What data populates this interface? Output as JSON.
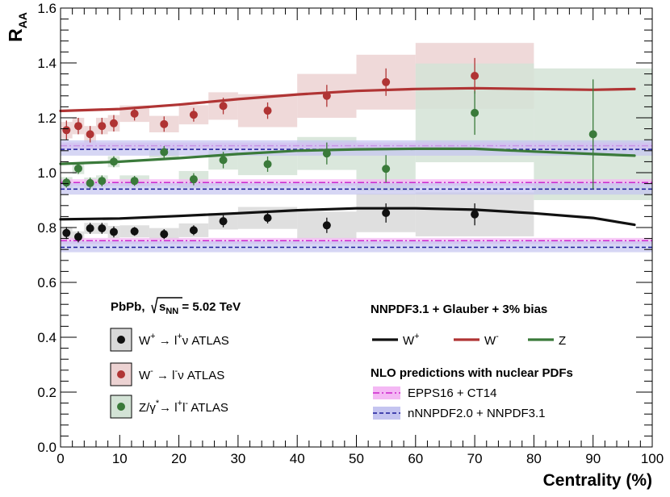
{
  "chart_data": {
    "type": "scatter",
    "title": "",
    "xlabel": "Centrality (%)",
    "ylabel": "R",
    "ylabel_sub": "AA",
    "xlim": [
      0,
      100
    ],
    "ylim": [
      0.0,
      1.6
    ],
    "x_ticks": [
      0,
      10,
      20,
      30,
      40,
      50,
      60,
      70,
      80,
      90,
      100
    ],
    "x_tick_labels": [
      "0",
      "10",
      "20",
      "30",
      "40",
      "50",
      "60",
      "70",
      "80",
      "90",
      "100"
    ],
    "y_ticks": [
      0.0,
      0.2,
      0.4,
      0.6,
      0.8,
      1.0,
      1.2,
      1.4,
      1.6
    ],
    "y_tick_labels": [
      "0.0",
      "0.2",
      "0.4",
      "0.6",
      "0.8",
      "1.0",
      "1.2",
      "1.4",
      "1.6"
    ],
    "grid": false,
    "colors": {
      "wplus": "#111111",
      "wminus": "#b03434",
      "z": "#3a7a3a",
      "epps_line": "#cc22cc",
      "epps_band": "#f4b8f4",
      "nnpdf_line": "#1a1a99",
      "nnpdf_band": "#c4c4f0",
      "wplus_box": "#d9d9d9",
      "wminus_box": "#ecd2d2",
      "z_box": "#d3e3d6"
    },
    "series": [
      {
        "name": "W+ ATLAS",
        "color_key": "wplus",
        "points": [
          {
            "x": 1,
            "y": 0.78,
            "err": 0.022,
            "xlo": 0,
            "xhi": 2,
            "syst": 0.02
          },
          {
            "x": 3,
            "y": 0.766,
            "err": 0.02,
            "xlo": 2,
            "xhi": 4,
            "syst": 0.02
          },
          {
            "x": 5,
            "y": 0.797,
            "err": 0.02,
            "xlo": 4,
            "xhi": 6,
            "syst": 0.02
          },
          {
            "x": 7,
            "y": 0.797,
            "err": 0.02,
            "xlo": 6,
            "xhi": 8,
            "syst": 0.02
          },
          {
            "x": 9,
            "y": 0.784,
            "err": 0.02,
            "xlo": 8,
            "xhi": 10,
            "syst": 0.022
          },
          {
            "x": 12.5,
            "y": 0.786,
            "err": 0.016,
            "xlo": 10,
            "xhi": 15,
            "syst": 0.022
          },
          {
            "x": 17.5,
            "y": 0.776,
            "err": 0.018,
            "xlo": 15,
            "xhi": 20,
            "syst": 0.022
          },
          {
            "x": 22.5,
            "y": 0.79,
            "err": 0.018,
            "xlo": 20,
            "xhi": 25,
            "syst": 0.025
          },
          {
            "x": 27.5,
            "y": 0.823,
            "err": 0.022,
            "xlo": 25,
            "xhi": 30,
            "syst": 0.03
          },
          {
            "x": 35,
            "y": 0.835,
            "err": 0.02,
            "xlo": 30,
            "xhi": 40,
            "syst": 0.04
          },
          {
            "x": 45,
            "y": 0.808,
            "err": 0.028,
            "xlo": 40,
            "xhi": 50,
            "syst": 0.05
          },
          {
            "x": 55,
            "y": 0.853,
            "err": 0.035,
            "xlo": 50,
            "xhi": 60,
            "syst": 0.07
          },
          {
            "x": 70,
            "y": 0.848,
            "err": 0.04,
            "xlo": 60,
            "xhi": 80,
            "syst": 0.08
          }
        ]
      },
      {
        "name": "W- ATLAS",
        "color_key": "wminus",
        "points": [
          {
            "x": 1,
            "y": 1.155,
            "err": 0.035,
            "xlo": 0,
            "xhi": 2,
            "syst": 0.03
          },
          {
            "x": 3,
            "y": 1.17,
            "err": 0.03,
            "xlo": 2,
            "xhi": 4,
            "syst": 0.03
          },
          {
            "x": 5,
            "y": 1.14,
            "err": 0.03,
            "xlo": 4,
            "xhi": 6,
            "syst": 0.03
          },
          {
            "x": 7,
            "y": 1.17,
            "err": 0.03,
            "xlo": 6,
            "xhi": 8,
            "syst": 0.03
          },
          {
            "x": 9,
            "y": 1.18,
            "err": 0.03,
            "xlo": 8,
            "xhi": 10,
            "syst": 0.03
          },
          {
            "x": 12.5,
            "y": 1.215,
            "err": 0.025,
            "xlo": 10,
            "xhi": 15,
            "syst": 0.03
          },
          {
            "x": 17.5,
            "y": 1.177,
            "err": 0.028,
            "xlo": 15,
            "xhi": 20,
            "syst": 0.03
          },
          {
            "x": 22.5,
            "y": 1.211,
            "err": 0.025,
            "xlo": 20,
            "xhi": 25,
            "syst": 0.035
          },
          {
            "x": 27.5,
            "y": 1.243,
            "err": 0.03,
            "xlo": 25,
            "xhi": 30,
            "syst": 0.05
          },
          {
            "x": 35,
            "y": 1.226,
            "err": 0.03,
            "xlo": 30,
            "xhi": 40,
            "syst": 0.06
          },
          {
            "x": 45,
            "y": 1.28,
            "err": 0.04,
            "xlo": 40,
            "xhi": 50,
            "syst": 0.08
          },
          {
            "x": 55,
            "y": 1.33,
            "err": 0.05,
            "xlo": 50,
            "xhi": 60,
            "syst": 0.1
          },
          {
            "x": 70,
            "y": 1.353,
            "err": 0.065,
            "xlo": 60,
            "xhi": 80,
            "syst": 0.12
          }
        ]
      },
      {
        "name": "Z ATLAS",
        "color_key": "z",
        "points": [
          {
            "x": 1,
            "y": 0.964,
            "err": 0.018,
            "xlo": 0,
            "xhi": 2,
            "syst": 0.02
          },
          {
            "x": 3,
            "y": 1.015,
            "err": 0.02,
            "xlo": 2,
            "xhi": 4,
            "syst": 0.02
          },
          {
            "x": 5,
            "y": 0.962,
            "err": 0.02,
            "xlo": 4,
            "xhi": 6,
            "syst": 0.02
          },
          {
            "x": 7,
            "y": 0.97,
            "err": 0.02,
            "xlo": 6,
            "xhi": 8,
            "syst": 0.02
          },
          {
            "x": 9,
            "y": 1.04,
            "err": 0.02,
            "xlo": 8,
            "xhi": 10,
            "syst": 0.02
          },
          {
            "x": 12.5,
            "y": 0.97,
            "err": 0.018,
            "xlo": 10,
            "xhi": 15,
            "syst": 0.02
          },
          {
            "x": 17.5,
            "y": 1.075,
            "err": 0.022,
            "xlo": 15,
            "xhi": 20,
            "syst": 0.02
          },
          {
            "x": 22.5,
            "y": 0.976,
            "err": 0.022,
            "xlo": 20,
            "xhi": 25,
            "syst": 0.03
          },
          {
            "x": 27.5,
            "y": 1.046,
            "err": 0.03,
            "xlo": 25,
            "xhi": 30,
            "syst": 0.035
          },
          {
            "x": 35,
            "y": 1.031,
            "err": 0.028,
            "xlo": 30,
            "xhi": 40,
            "syst": 0.04
          },
          {
            "x": 45,
            "y": 1.07,
            "err": 0.04,
            "xlo": 40,
            "xhi": 50,
            "syst": 0.06
          },
          {
            "x": 55,
            "y": 1.014,
            "err": 0.05,
            "xlo": 50,
            "xhi": 60,
            "syst": 0.08
          },
          {
            "x": 70,
            "y": 1.218,
            "err": 0.08,
            "xlo": 60,
            "xhi": 80,
            "syst": 0.18
          },
          {
            "x": 90,
            "y": 1.14,
            "err": 0.2,
            "xlo": 80,
            "xhi": 100,
            "syst": 0.24
          }
        ]
      }
    ],
    "model_curves": [
      {
        "name": "W+",
        "color_key": "wplus",
        "x": [
          0,
          10,
          20,
          30,
          40,
          50,
          60,
          70,
          80,
          90,
          97
        ],
        "y": [
          0.83,
          0.833,
          0.842,
          0.852,
          0.863,
          0.87,
          0.87,
          0.865,
          0.852,
          0.835,
          0.81
        ]
      },
      {
        "name": "W-",
        "color_key": "wminus",
        "x": [
          0,
          10,
          20,
          30,
          40,
          50,
          60,
          70,
          80,
          90,
          97
        ],
        "y": [
          1.225,
          1.232,
          1.248,
          1.268,
          1.285,
          1.298,
          1.305,
          1.308,
          1.305,
          1.302,
          1.305
        ]
      },
      {
        "name": "Z",
        "color_key": "z",
        "x": [
          0,
          10,
          20,
          30,
          40,
          50,
          60,
          70,
          80,
          90,
          97
        ],
        "y": [
          1.032,
          1.04,
          1.053,
          1.068,
          1.08,
          1.085,
          1.087,
          1.087,
          1.077,
          1.068,
          1.062
        ]
      }
    ],
    "pdf_bands": [
      {
        "name": "EPPS16 + CT14",
        "group": "W+",
        "center": 0.752,
        "lo": 0.74,
        "hi": 0.762,
        "style": "epps"
      },
      {
        "name": "nNNPDF2.0 + NNPDF3.1",
        "group": "W+",
        "center": 0.728,
        "lo": 0.71,
        "hi": 0.75,
        "style": "nnpdf"
      },
      {
        "name": "EPPS16 + CT14",
        "group": "W-",
        "center": 1.098,
        "lo": 1.086,
        "hi": 1.11,
        "style": "epps"
      },
      {
        "name": "nNNPDF2.0 + NNPDF3.1",
        "group": "W-",
        "center": 1.085,
        "lo": 1.062,
        "hi": 1.118,
        "style": "nnpdf"
      },
      {
        "name": "EPPS16 + CT14",
        "group": "Z",
        "center": 0.964,
        "lo": 0.952,
        "hi": 0.976,
        "style": "epps"
      },
      {
        "name": "nNNPDF2.0 + NNPDF3.1",
        "group": "Z",
        "center": 0.94,
        "lo": 0.92,
        "hi": 0.962,
        "style": "nnpdf"
      }
    ],
    "pdf_band_xrange": [
      0,
      100
    ],
    "legend_left": {
      "system_text": "PbPb,",
      "energy_sqrt": "s",
      "energy_sub": "NN",
      "energy_value": "= 5.02 TeV",
      "entries": [
        {
          "color_key": "wplus",
          "main": "W",
          "sup": "+",
          "arrow": " → l",
          "sup2": "+",
          "tail": "ν ATLAS"
        },
        {
          "color_key": "wminus",
          "main": "W",
          "sup": "-",
          "arrow": " → l",
          "sup2": "-",
          "tail": "ν ATLAS"
        },
        {
          "color_key": "z",
          "main": "Z/γ",
          "sup": "*",
          "arrow": "→ l",
          "sup2": "+",
          "tail": "l",
          "sup3": "-",
          "tail2": " ATLAS"
        }
      ]
    },
    "legend_right": {
      "model_title": "NNPDF3.1 + Glauber + 3% bias",
      "model_entries": [
        {
          "color_key": "wplus",
          "label": "W",
          "sup": "+"
        },
        {
          "color_key": "wminus",
          "label": "W",
          "sup": "-"
        },
        {
          "color_key": "z",
          "label": "Z",
          "sup": ""
        }
      ],
      "nlo_title": "NLO predictions with nuclear PDFs",
      "nlo_entries": [
        {
          "style": "epps",
          "label": "EPPS16 + CT14"
        },
        {
          "style": "nnpdf",
          "label": "nNNPDF2.0 + NNPDF3.1"
        }
      ]
    }
  }
}
